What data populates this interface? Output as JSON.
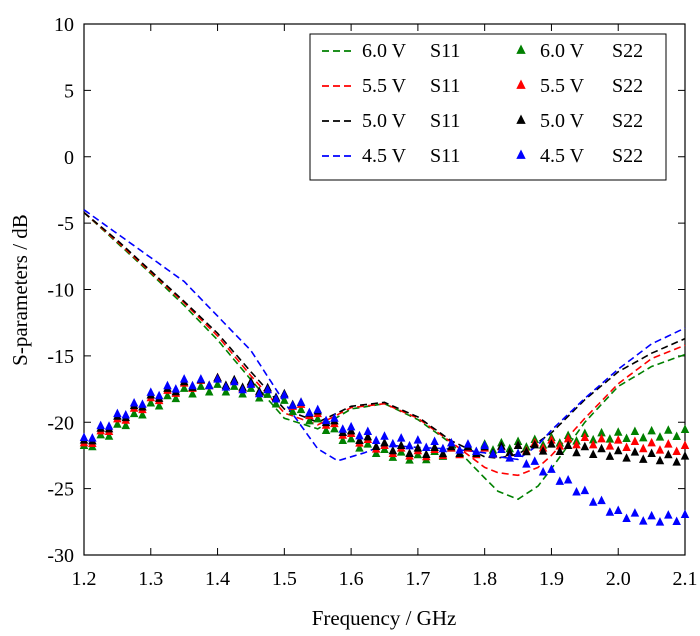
{
  "chart_data": {
    "type": "line",
    "title": "",
    "xlabel": "Frequency / GHz",
    "ylabel": "S-parameters / dB",
    "xlim": [
      1.2,
      2.1
    ],
    "ylim": [
      -30,
      10
    ],
    "xticks": [
      "1.2",
      "1.3",
      "1.4",
      "1.5",
      "1.6",
      "1.7",
      "1.8",
      "1.9",
      "2.0",
      "2.1"
    ],
    "yticks": [
      "10",
      "5",
      "0",
      "-5",
      "-10",
      "-15",
      "-20",
      "-25",
      "-30"
    ],
    "grid": false,
    "legend_position": "top-right",
    "series": [
      {
        "name": "6.0 V",
        "param": "S11",
        "color": "#008000",
        "style": "dashed",
        "x": [
          1.2,
          1.25,
          1.3,
          1.35,
          1.4,
          1.45,
          1.5,
          1.55,
          1.6,
          1.65,
          1.7,
          1.75,
          1.8,
          1.82,
          1.85,
          1.88,
          1.9,
          1.95,
          2.0,
          2.05,
          2.1
        ],
        "y": [
          -4.2,
          -6.5,
          -8.8,
          -11.2,
          -13.8,
          -16.8,
          -19.7,
          -20.5,
          -19.0,
          -18.6,
          -19.8,
          -21.6,
          -24.2,
          -25.2,
          -25.8,
          -24.8,
          -23.5,
          -20.0,
          -17.3,
          -15.8,
          -14.9
        ]
      },
      {
        "name": "5.5 V",
        "param": "S11",
        "color": "#ff0000",
        "style": "dashed",
        "x": [
          1.2,
          1.25,
          1.3,
          1.35,
          1.4,
          1.45,
          1.5,
          1.55,
          1.6,
          1.65,
          1.7,
          1.75,
          1.8,
          1.82,
          1.85,
          1.88,
          1.9,
          1.95,
          2.0,
          2.05,
          2.1
        ],
        "y": [
          -4.2,
          -6.4,
          -8.7,
          -11.0,
          -13.5,
          -16.5,
          -19.3,
          -20.2,
          -18.9,
          -18.6,
          -19.7,
          -21.5,
          -23.4,
          -23.8,
          -24.0,
          -23.4,
          -22.5,
          -19.7,
          -17.1,
          -15.2,
          -14.2
        ]
      },
      {
        "name": "5.0 V",
        "param": "S11",
        "color": "#000000",
        "style": "dashed",
        "x": [
          1.2,
          1.25,
          1.3,
          1.35,
          1.4,
          1.45,
          1.5,
          1.55,
          1.6,
          1.65,
          1.7,
          1.75,
          1.8,
          1.82,
          1.85,
          1.88,
          1.9,
          1.95,
          2.0,
          2.05,
          2.1
        ],
        "y": [
          -4.2,
          -6.3,
          -8.6,
          -10.9,
          -13.3,
          -16.2,
          -19.0,
          -20.0,
          -18.8,
          -18.5,
          -19.6,
          -21.4,
          -22.6,
          -22.7,
          -22.4,
          -21.5,
          -20.8,
          -18.3,
          -16.2,
          -14.8,
          -13.7
        ]
      },
      {
        "name": "4.5 V",
        "param": "S11",
        "color": "#0000ff",
        "style": "dashed",
        "x": [
          1.2,
          1.25,
          1.3,
          1.35,
          1.4,
          1.45,
          1.5,
          1.55,
          1.58,
          1.62,
          1.65,
          1.7,
          1.75,
          1.8,
          1.82,
          1.85,
          1.88,
          1.9,
          1.95,
          2.0,
          2.05,
          2.1
        ],
        "y": [
          -4.0,
          -5.8,
          -7.6,
          -9.4,
          -12.0,
          -14.6,
          -18.5,
          -22.0,
          -22.9,
          -22.3,
          -21.7,
          -21.9,
          -22.0,
          -22.3,
          -22.6,
          -22.8,
          -21.7,
          -20.6,
          -18.2,
          -16.0,
          -14.1,
          -12.9
        ]
      },
      {
        "name": "6.0 V",
        "param": "S22",
        "color": "#008000",
        "style": "triangles",
        "x": [
          1.2,
          1.25,
          1.3,
          1.35,
          1.4,
          1.45,
          1.5,
          1.55,
          1.6,
          1.65,
          1.7,
          1.75,
          1.8,
          1.85,
          1.9,
          1.95,
          2.0,
          2.05,
          2.1
        ],
        "y": [
          -22.0,
          -20.4,
          -18.8,
          -17.7,
          -17.4,
          -17.7,
          -18.6,
          -20.0,
          -21.5,
          -22.3,
          -22.7,
          -22.2,
          -21.9,
          -21.7,
          -21.4,
          -21.1,
          -21.0,
          -20.9,
          -20.8
        ]
      },
      {
        "name": "5.5 V",
        "param": "S22",
        "color": "#ff0000",
        "style": "triangles",
        "x": [
          1.2,
          1.25,
          1.3,
          1.35,
          1.4,
          1.45,
          1.5,
          1.55,
          1.6,
          1.65,
          1.7,
          1.75,
          1.8,
          1.85,
          1.9,
          1.95,
          2.0,
          2.05,
          2.1
        ],
        "y": [
          -21.8,
          -20.0,
          -18.4,
          -17.3,
          -16.9,
          -17.3,
          -18.2,
          -19.6,
          -21.1,
          -22.0,
          -22.4,
          -22.2,
          -22.2,
          -22.0,
          -21.6,
          -21.4,
          -21.6,
          -21.8,
          -22.0
        ]
      },
      {
        "name": "5.0 V",
        "param": "S22",
        "color": "#000000",
        "style": "triangles",
        "x": [
          1.2,
          1.25,
          1.3,
          1.35,
          1.4,
          1.45,
          1.5,
          1.55,
          1.6,
          1.65,
          1.7,
          1.75,
          1.8,
          1.85,
          1.9,
          1.95,
          2.0,
          2.05,
          2.1
        ],
        "y": [
          -21.6,
          -19.8,
          -18.2,
          -17.2,
          -16.9,
          -17.2,
          -18.1,
          -19.4,
          -20.9,
          -21.8,
          -22.2,
          -22.1,
          -22.1,
          -22.0,
          -21.9,
          -22.1,
          -22.4,
          -22.6,
          -22.8
        ]
      },
      {
        "name": "4.5 V",
        "param": "S22",
        "color": "#0000ff",
        "style": "triangles",
        "x": [
          1.2,
          1.25,
          1.3,
          1.35,
          1.4,
          1.45,
          1.5,
          1.55,
          1.6,
          1.65,
          1.7,
          1.75,
          1.8,
          1.85,
          1.9,
          1.95,
          2.0,
          2.05,
          2.1
        ],
        "y": [
          -21.4,
          -19.6,
          -18.0,
          -17.0,
          -17.0,
          -17.4,
          -18.2,
          -19.3,
          -20.6,
          -21.3,
          -21.6,
          -21.8,
          -22.0,
          -22.6,
          -23.8,
          -25.4,
          -26.9,
          -27.3,
          -27.2
        ]
      }
    ]
  }
}
